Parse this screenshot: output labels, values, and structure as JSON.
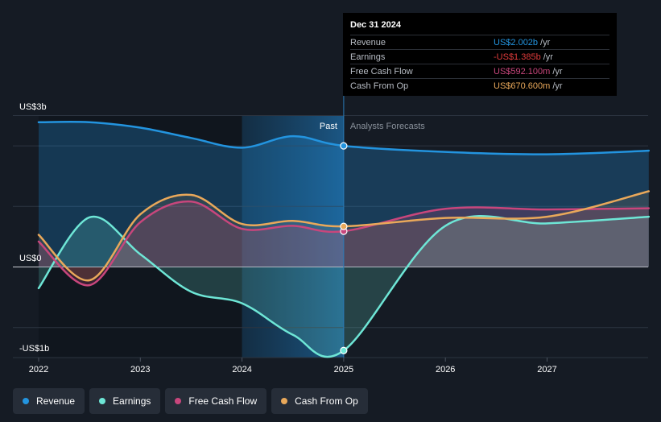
{
  "chart_data": {
    "type": "line",
    "y_unit_labels": {
      "top": "US$3b",
      "zero": "US$0",
      "bottom": "-US$1b"
    },
    "ylim": [
      -1.5,
      2.5
    ],
    "xlim": [
      2022.0,
      2028.0
    ],
    "x_ticks": [
      {
        "value": 2022,
        "label": "2022"
      },
      {
        "value": 2023,
        "label": "2023"
      },
      {
        "value": 2024,
        "label": "2024"
      },
      {
        "value": 2025,
        "label": "2025"
      },
      {
        "value": 2026,
        "label": "2026"
      },
      {
        "value": 2027,
        "label": "2027"
      }
    ],
    "past_label": "Past",
    "forecast_label": "Analysts Forecasts",
    "divider_x": 2025.0,
    "highlight_start_x": 2024.0,
    "series": [
      {
        "name": "Revenue",
        "color": "#2394df",
        "points": [
          [
            2022.0,
            2.39
          ],
          [
            2022.5,
            2.39
          ],
          [
            2023.0,
            2.3
          ],
          [
            2023.5,
            2.13
          ],
          [
            2024.0,
            1.97
          ],
          [
            2024.5,
            2.16
          ],
          [
            2025.0,
            2.0
          ],
          [
            2026.0,
            1.9
          ],
          [
            2027.0,
            1.86
          ],
          [
            2028.0,
            1.92
          ]
        ]
      },
      {
        "name": "Earnings",
        "color": "#6ee6d6",
        "points": [
          [
            2022.0,
            -0.35
          ],
          [
            2022.5,
            0.82
          ],
          [
            2023.0,
            0.21
          ],
          [
            2023.5,
            -0.41
          ],
          [
            2024.0,
            -0.6
          ],
          [
            2024.5,
            -1.12
          ],
          [
            2025.0,
            -1.38
          ],
          [
            2026.0,
            0.68
          ],
          [
            2027.0,
            0.72
          ],
          [
            2028.0,
            0.83
          ]
        ]
      },
      {
        "name": "Free Cash Flow",
        "color": "#c8467c",
        "points": [
          [
            2022.0,
            0.42
          ],
          [
            2022.5,
            -0.3
          ],
          [
            2023.0,
            0.74
          ],
          [
            2023.5,
            1.08
          ],
          [
            2024.0,
            0.63
          ],
          [
            2024.5,
            0.68
          ],
          [
            2025.0,
            0.59
          ],
          [
            2026.0,
            0.96
          ],
          [
            2027.0,
            0.95
          ],
          [
            2028.0,
            0.97
          ]
        ]
      },
      {
        "name": "Cash From Op",
        "color": "#e9a85a",
        "points": [
          [
            2022.0,
            0.53
          ],
          [
            2022.5,
            -0.22
          ],
          [
            2023.0,
            0.87
          ],
          [
            2023.5,
            1.19
          ],
          [
            2024.0,
            0.71
          ],
          [
            2024.5,
            0.76
          ],
          [
            2025.0,
            0.67
          ],
          [
            2026.0,
            0.81
          ],
          [
            2027.0,
            0.83
          ],
          [
            2028.0,
            1.25
          ]
        ]
      }
    ]
  },
  "tooltip": {
    "date": "Dec 31 2024",
    "rows": [
      {
        "label": "Revenue",
        "value": "US$2.002b",
        "unit": "/yr",
        "color": "#2394df"
      },
      {
        "label": "Earnings",
        "value": "-US$1.385b",
        "unit": "/yr",
        "color": "#e03b3b"
      },
      {
        "label": "Free Cash Flow",
        "value": "US$592.100m",
        "unit": "/yr",
        "color": "#c8467c"
      },
      {
        "label": "Cash From Op",
        "value": "US$670.600m",
        "unit": "/yr",
        "color": "#e9a85a"
      }
    ]
  },
  "legend": [
    {
      "label": "Revenue",
      "color": "#2394df"
    },
    {
      "label": "Earnings",
      "color": "#6ee6d6"
    },
    {
      "label": "Free Cash Flow",
      "color": "#c8467c"
    },
    {
      "label": "Cash From Op",
      "color": "#e9a85a"
    }
  ]
}
